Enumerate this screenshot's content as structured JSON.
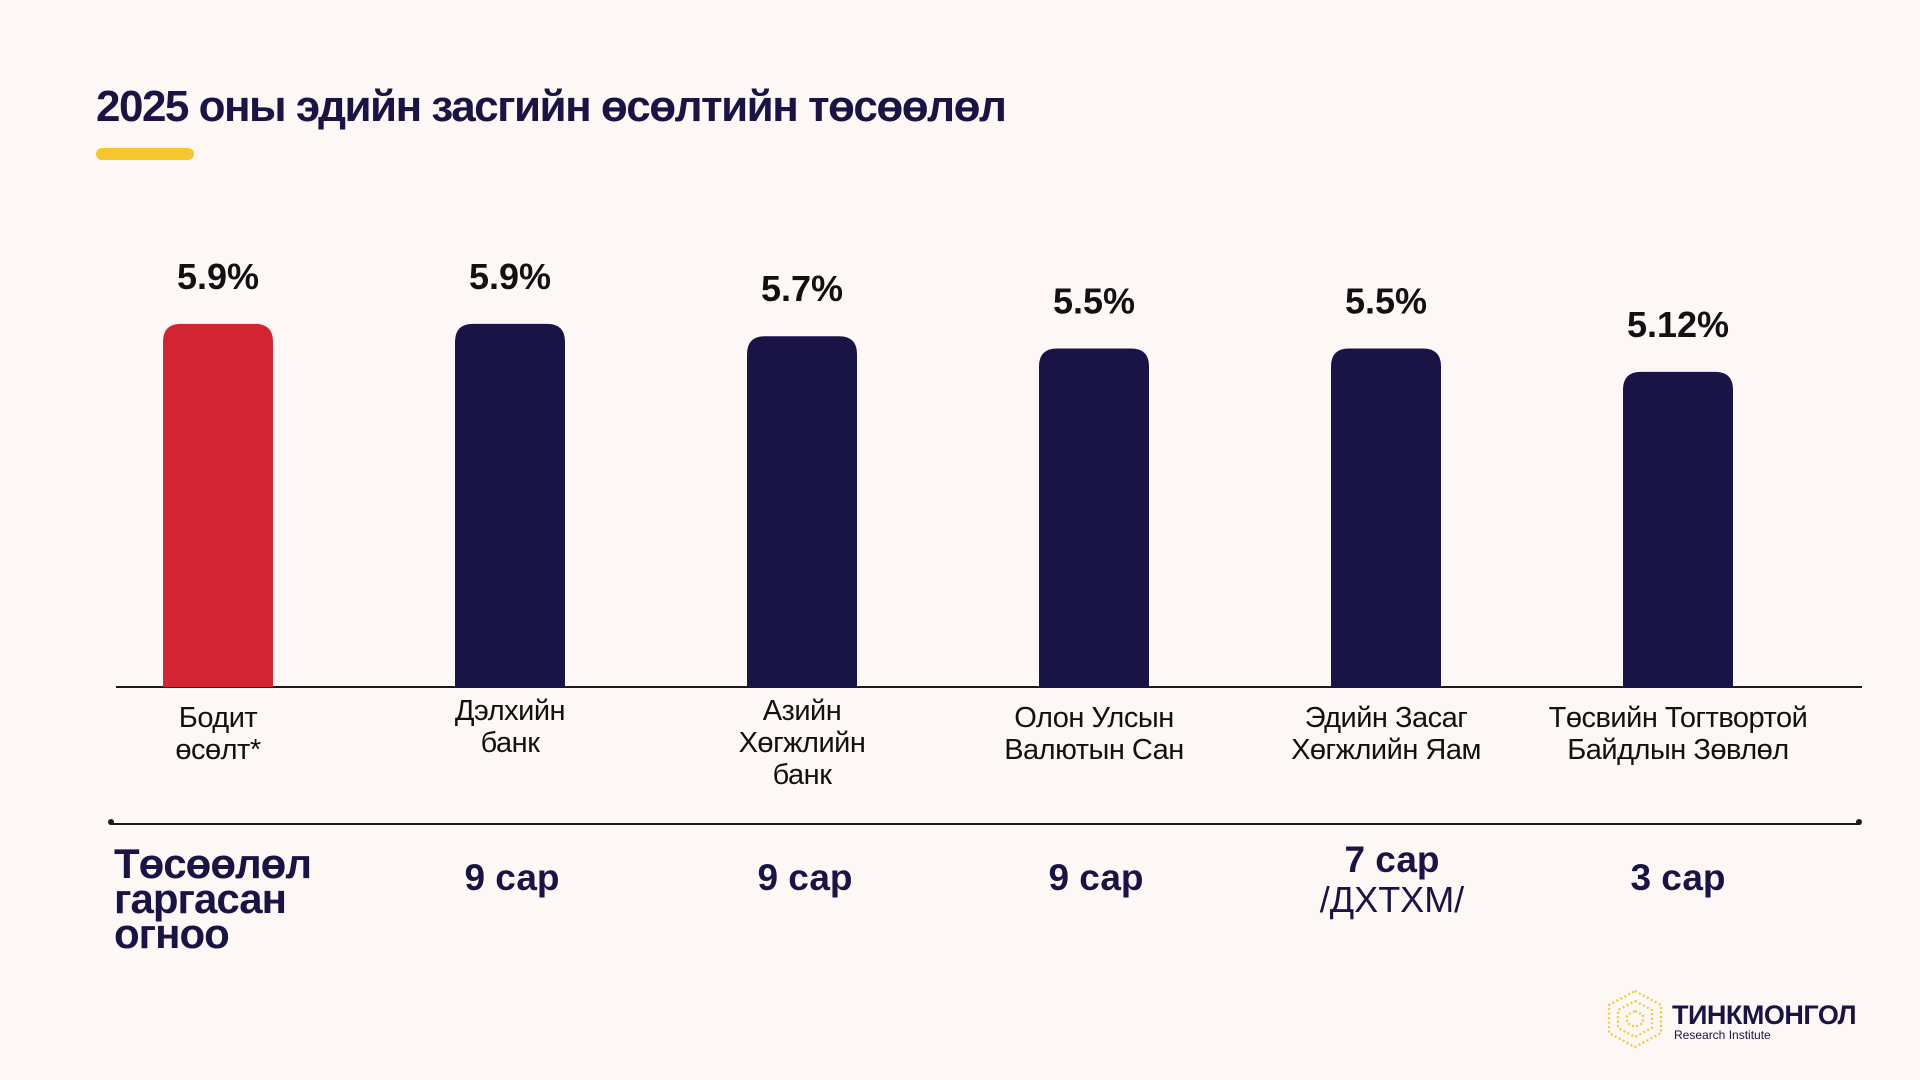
{
  "title": "2025 оны эдийн засгийн өсөлтийн төсөөлөл",
  "colors": {
    "highlight": "#d22432",
    "bar": "#1a1446",
    "accent": "#f6c62d"
  },
  "chart_data": {
    "type": "bar",
    "title": "2025 оны эдийн засгийн өсөлтийн төсөөлөл",
    "ylim": [
      0,
      6.5
    ],
    "values": [
      5.9,
      5.9,
      5.7,
      5.5,
      5.5,
      5.12
    ],
    "value_labels": [
      "5.9%",
      "5.9%",
      "5.7%",
      "5.5%",
      "5.5%",
      "5.12%"
    ],
    "categories": [
      [
        "Бодит",
        "өсөлт*"
      ],
      [
        "Дэлхийн",
        "банк"
      ],
      [
        "Азийн",
        "Хөгжлийн",
        "банк"
      ],
      [
        "Олон Улсын",
        "Валютын Сан"
      ],
      [
        "Эдийн Засаг",
        "Хөгжлийн Яам"
      ],
      [
        "Төсвийн Тогтвортой",
        "Байдлын Зөвлөл"
      ]
    ],
    "highlight_index": 0
  },
  "dates": {
    "heading": [
      "Төсөөлөл",
      "гаргасан",
      "огноо"
    ],
    "items": [
      {
        "main": "9 сар",
        "sub": ""
      },
      {
        "main": "9 сар",
        "sub": ""
      },
      {
        "main": "9 сар",
        "sub": ""
      },
      {
        "main": "7 сар",
        "sub": "/ДХТХМ/"
      },
      {
        "main": "3 сар",
        "sub": ""
      }
    ]
  },
  "logo": {
    "name": "ТИНКМОНГОЛ",
    "subtitle": "Research Institute"
  }
}
